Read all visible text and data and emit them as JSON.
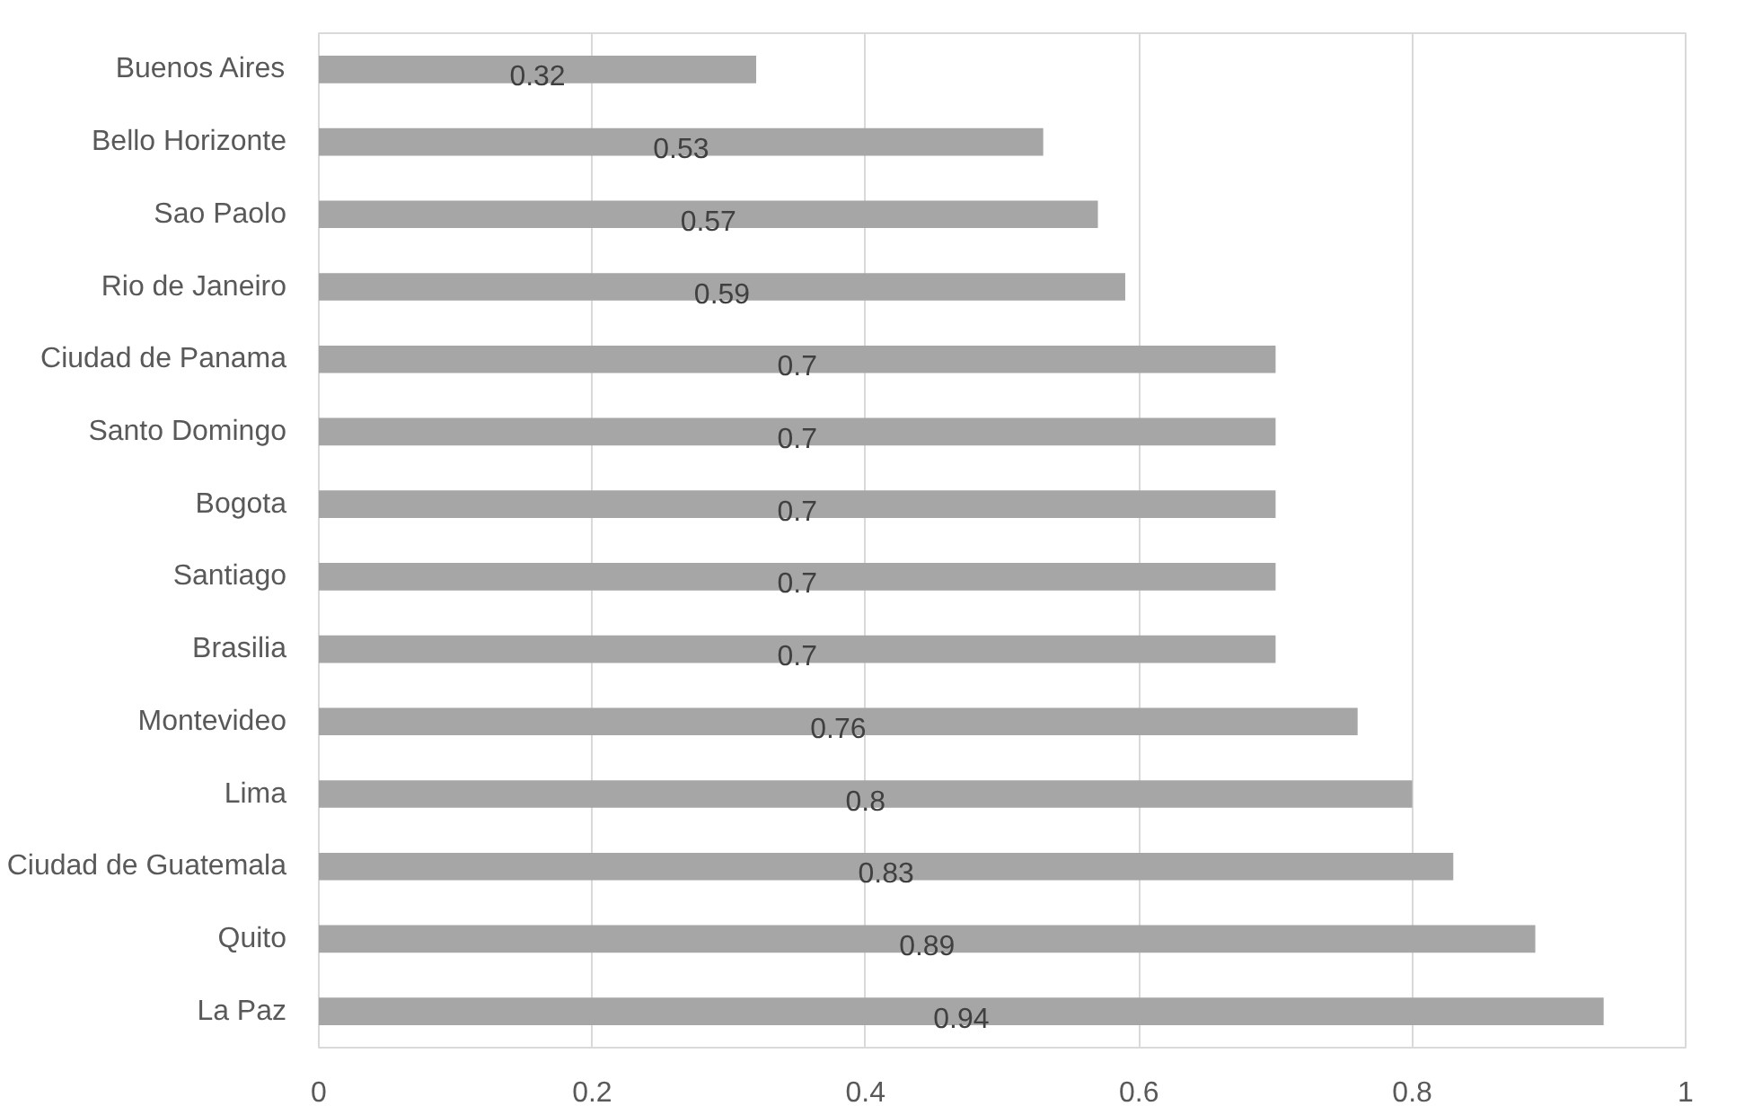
{
  "chart_data": {
    "type": "bar",
    "orientation": "horizontal",
    "categories": [
      "Buenos Aires",
      "Bello Horizonte",
      "Sao Paolo",
      "Rio de Janeiro",
      "Ciudad de Panama",
      "Santo Domingo",
      "Bogota",
      "Santiago",
      "Brasilia",
      "Montevideo",
      "Lima",
      "Ciudad de Guatemala",
      "Quito",
      "La Paz"
    ],
    "values": [
      0.32,
      0.53,
      0.57,
      0.59,
      0.7,
      0.7,
      0.7,
      0.7,
      0.7,
      0.76,
      0.8,
      0.83,
      0.89,
      0.94
    ],
    "color": "#a6a6a6",
    "xlim": [
      0,
      1
    ],
    "xticks": [
      0,
      0.2,
      0.4,
      0.6,
      0.8,
      1
    ],
    "grid": "x",
    "data_labels": true
  }
}
